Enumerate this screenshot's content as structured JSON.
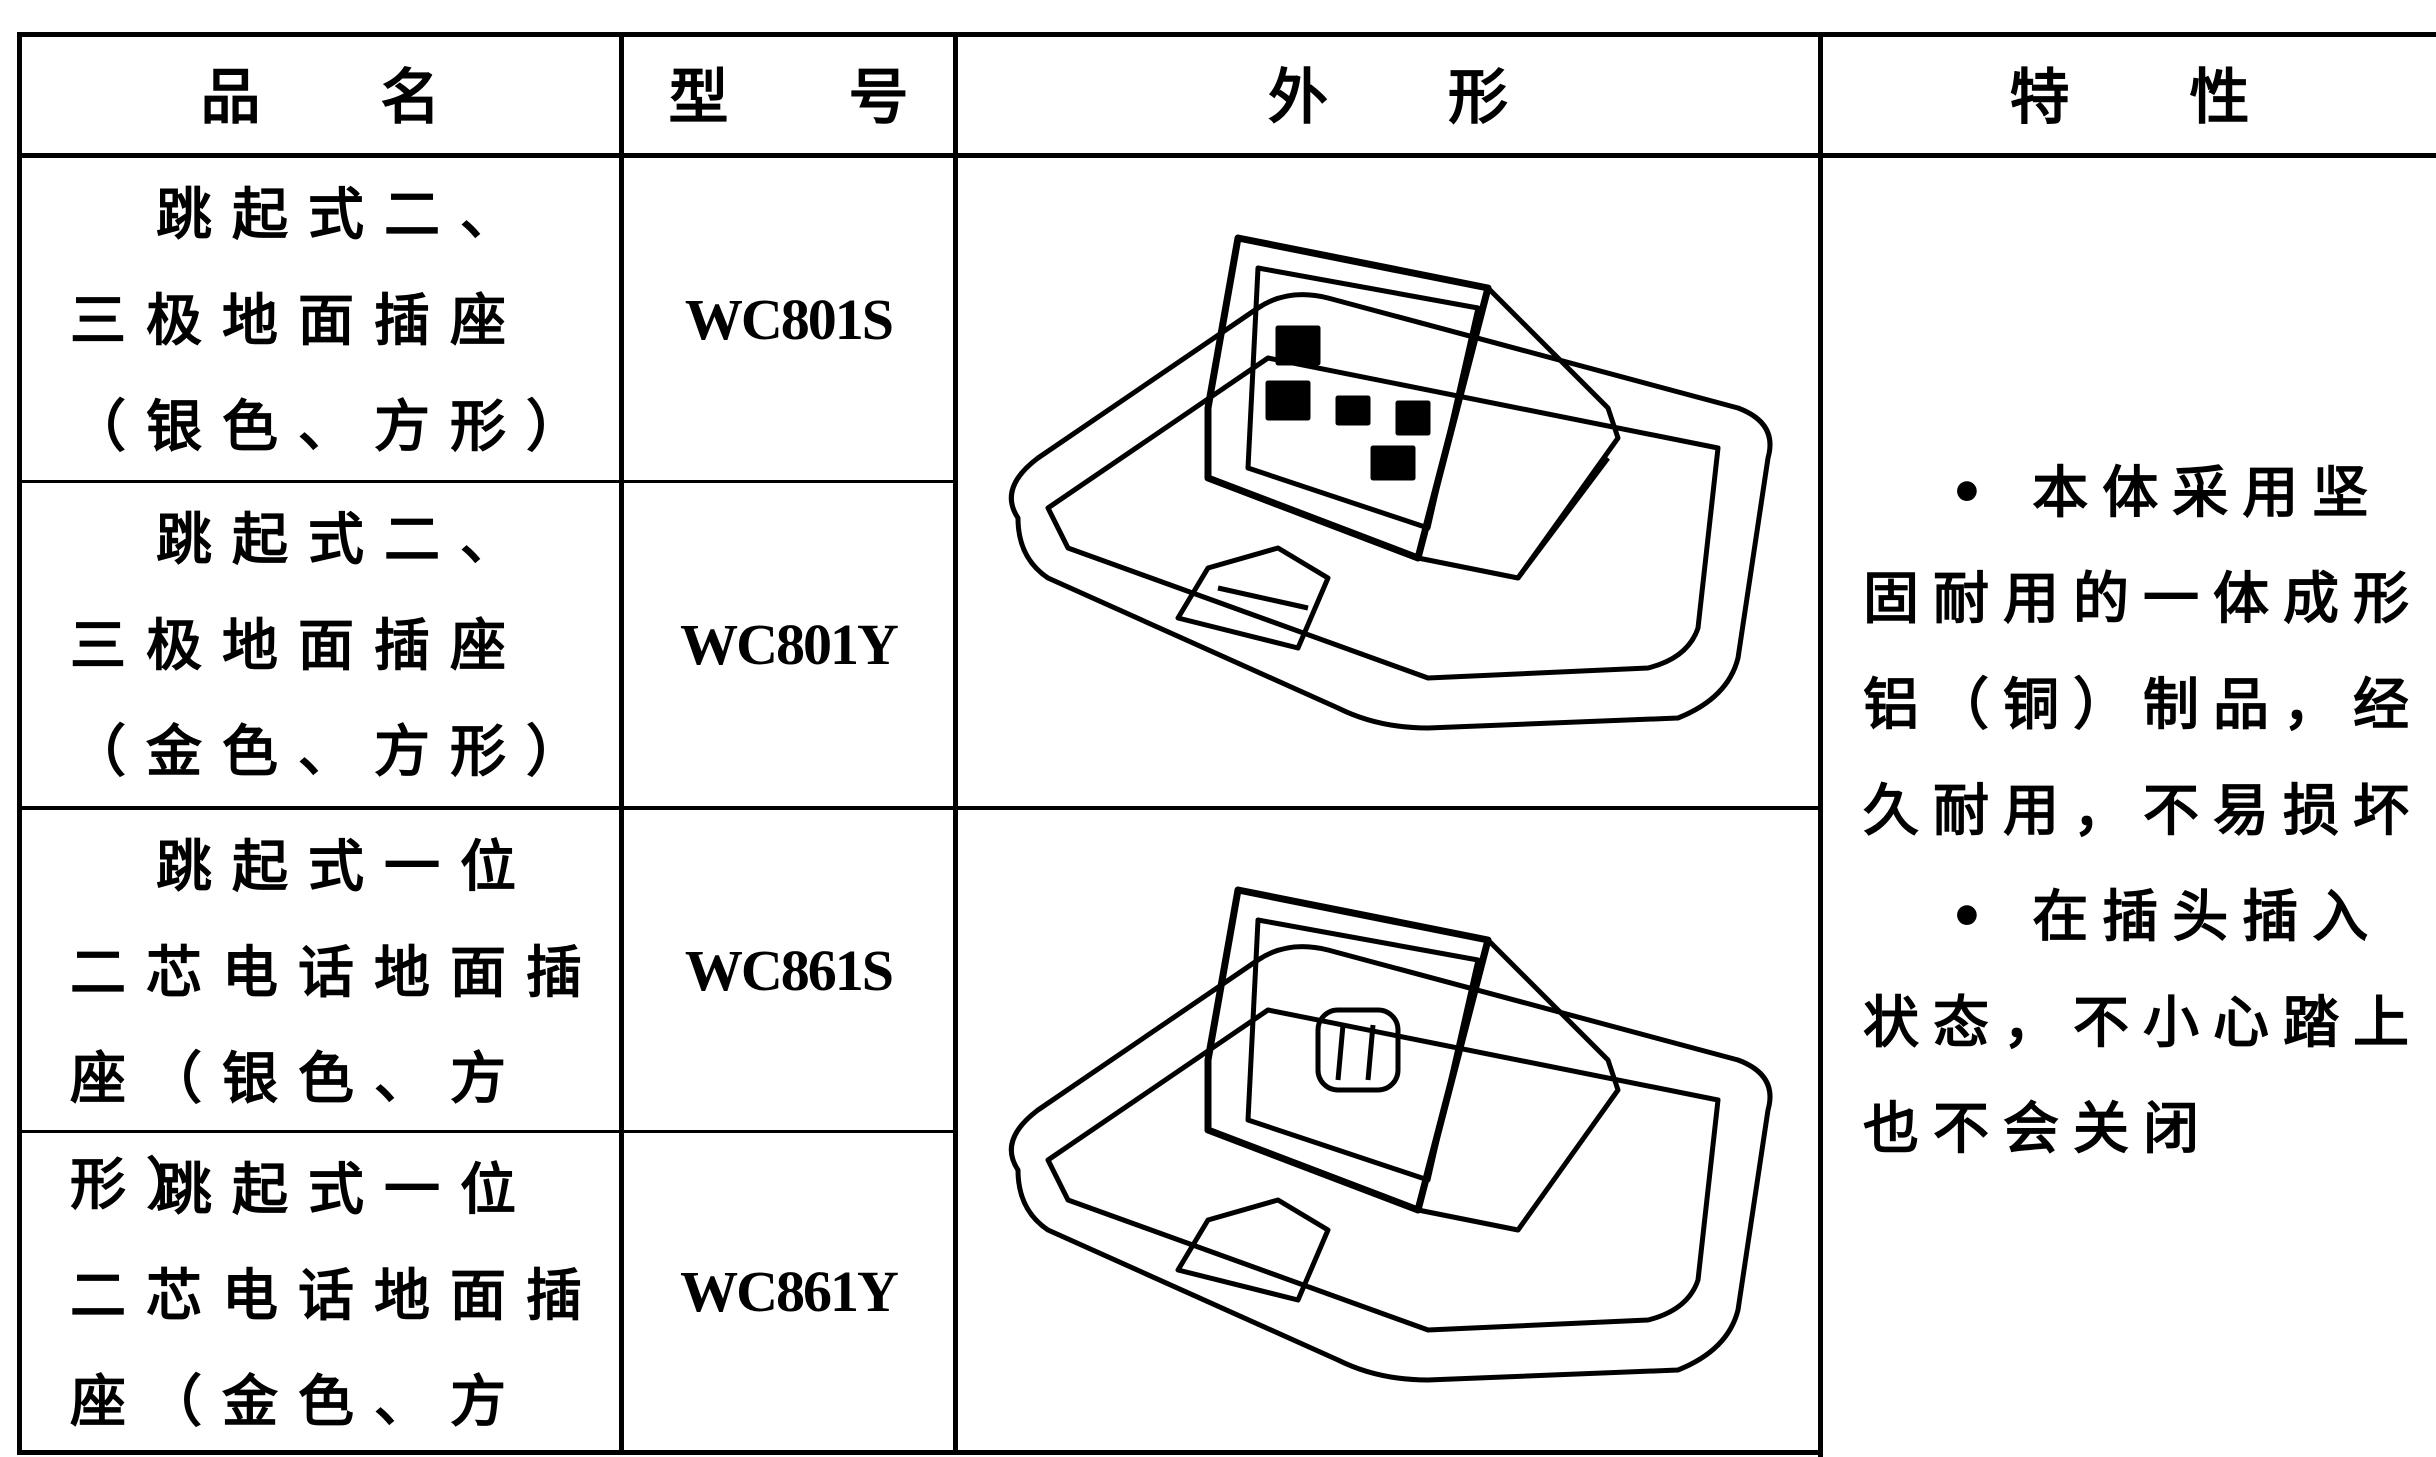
{
  "table": {
    "header": [
      "品　　名",
      "型　　号",
      "外　　形",
      "特　　性"
    ],
    "rows": [
      {
        "name": "跳起式二、三极地面插座（银色、方形）",
        "model": "WC801S"
      },
      {
        "name": "跳起式二、三极地面插座（金色、方形）",
        "model": "WC801Y"
      },
      {
        "name": "跳起式一位二芯电话地面插座（银色、方形）",
        "model": "WC861S"
      },
      {
        "name": "跳起式一位二芯电话地面插座（金色、方形）",
        "model": "WC861Y"
      }
    ],
    "features": [
      "• 本体采用坚固耐用的一体成形铝（铜）制品，经久耐用，不易损坏",
      "• 在插头插入状态，不小心踏上也不会关闭"
    ]
  }
}
